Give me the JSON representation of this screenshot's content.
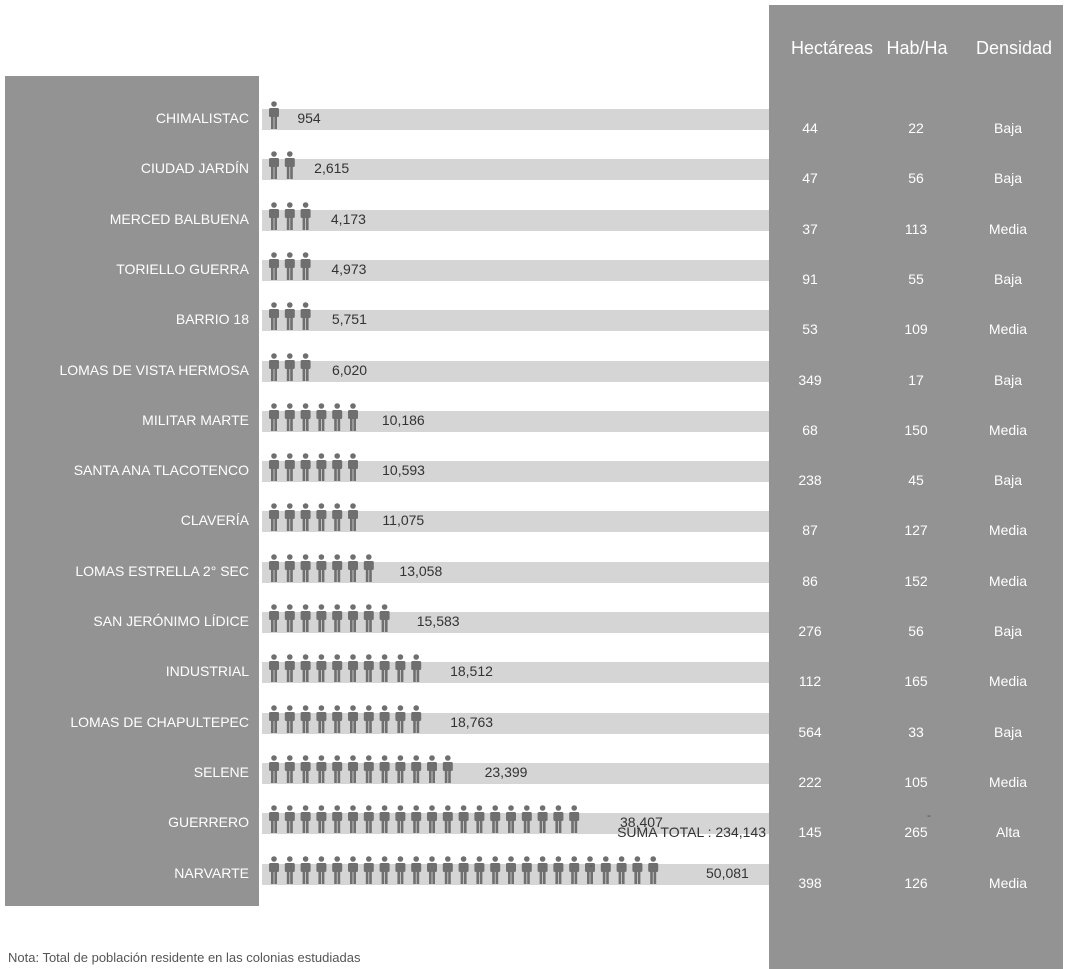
{
  "headers": {
    "hectareas": "Hectáreas",
    "habha": "Hab/Ha",
    "densidad": "Densidad"
  },
  "suma_total": "SUMA TOTAL : 234,143",
  "nota": "Nota: Total de  población residente  en las  colonias estudiadas",
  "dash_1": "-",
  "dash_2": "-",
  "colors": {
    "panel": "#939393",
    "bar": "#d5d5d5",
    "icon": "#6f6f6f"
  },
  "chart_data": {
    "type": "table",
    "rows": [
      {
        "name": "CHIMALISTAC",
        "poblacion": 954,
        "poblacion_label": "954",
        "icons": 1,
        "hectareas": "44",
        "hab_ha": "22",
        "densidad": "Baja"
      },
      {
        "name": "CIUDAD JARDÍN",
        "poblacion": 2615,
        "poblacion_label": "2,615",
        "icons": 2,
        "hectareas": "47",
        "hab_ha": "56",
        "densidad": "Baja"
      },
      {
        "name": "MERCED BALBUENA",
        "poblacion": 4173,
        "poblacion_label": "4,173",
        "icons": 3,
        "hectareas": "37",
        "hab_ha": "113",
        "densidad": "Media"
      },
      {
        "name": "TORIELLO GUERRA",
        "poblacion": 4973,
        "poblacion_label": "4,973",
        "icons": 3,
        "hectareas": "91",
        "hab_ha": "55",
        "densidad": "Baja"
      },
      {
        "name": "BARRIO 18",
        "poblacion": 5751,
        "poblacion_label": "5,751",
        "icons": 3,
        "hectareas": "53",
        "hab_ha": "109",
        "densidad": "Media"
      },
      {
        "name": "LOMAS DE VISTA HERMOSA",
        "poblacion": 6020,
        "poblacion_label": "6,020",
        "icons": 3,
        "hectareas": "349",
        "hab_ha": "17",
        "densidad": "Baja"
      },
      {
        "name": "MILITAR MARTE",
        "poblacion": 10186,
        "poblacion_label": "10,186",
        "icons": 6,
        "hectareas": "68",
        "hab_ha": "150",
        "densidad": "Media"
      },
      {
        "name": "SANTA ANA TLACOTENCO",
        "poblacion": 10593,
        "poblacion_label": "10,593",
        "icons": 6,
        "hectareas": "238",
        "hab_ha": "45",
        "densidad": "Baja"
      },
      {
        "name": "CLAVERÍA",
        "poblacion": 11075,
        "poblacion_label": "11,075",
        "icons": 6,
        "hectareas": "87",
        "hab_ha": "127",
        "densidad": "Media"
      },
      {
        "name": "LOMAS ESTRELLA 2° SEC",
        "poblacion": 13058,
        "poblacion_label": "13,058",
        "icons": 7,
        "hectareas": "86",
        "hab_ha": "152",
        "densidad": "Media"
      },
      {
        "name": "SAN JERÓNIMO LÍDICE",
        "poblacion": 15583,
        "poblacion_label": "15,583",
        "icons": 8,
        "hectareas": "276",
        "hab_ha": "56",
        "densidad": "Baja"
      },
      {
        "name": "INDUSTRIAL",
        "poblacion": 18512,
        "poblacion_label": "18,512",
        "icons": 10,
        "hectareas": "112",
        "hab_ha": "165",
        "densidad": "Media"
      },
      {
        "name": "LOMAS DE CHAPULTEPEC",
        "poblacion": 18763,
        "poblacion_label": "18,763",
        "icons": 10,
        "hectareas": "564",
        "hab_ha": "33",
        "densidad": "Baja"
      },
      {
        "name": "SELENE",
        "poblacion": 23399,
        "poblacion_label": "23,399",
        "icons": 12,
        "hectareas": "222",
        "hab_ha": "105",
        "densidad": "Media"
      },
      {
        "name": "GUERRERO",
        "poblacion": 38407,
        "poblacion_label": "38,407",
        "icons": 20,
        "hectareas": "145",
        "hab_ha": "265",
        "densidad": "Alta"
      },
      {
        "name": "NARVARTE",
        "poblacion": 50081,
        "poblacion_label": "50,081",
        "icons": 25,
        "hectareas": "398",
        "hab_ha": "126",
        "densidad": "Media"
      }
    ]
  }
}
